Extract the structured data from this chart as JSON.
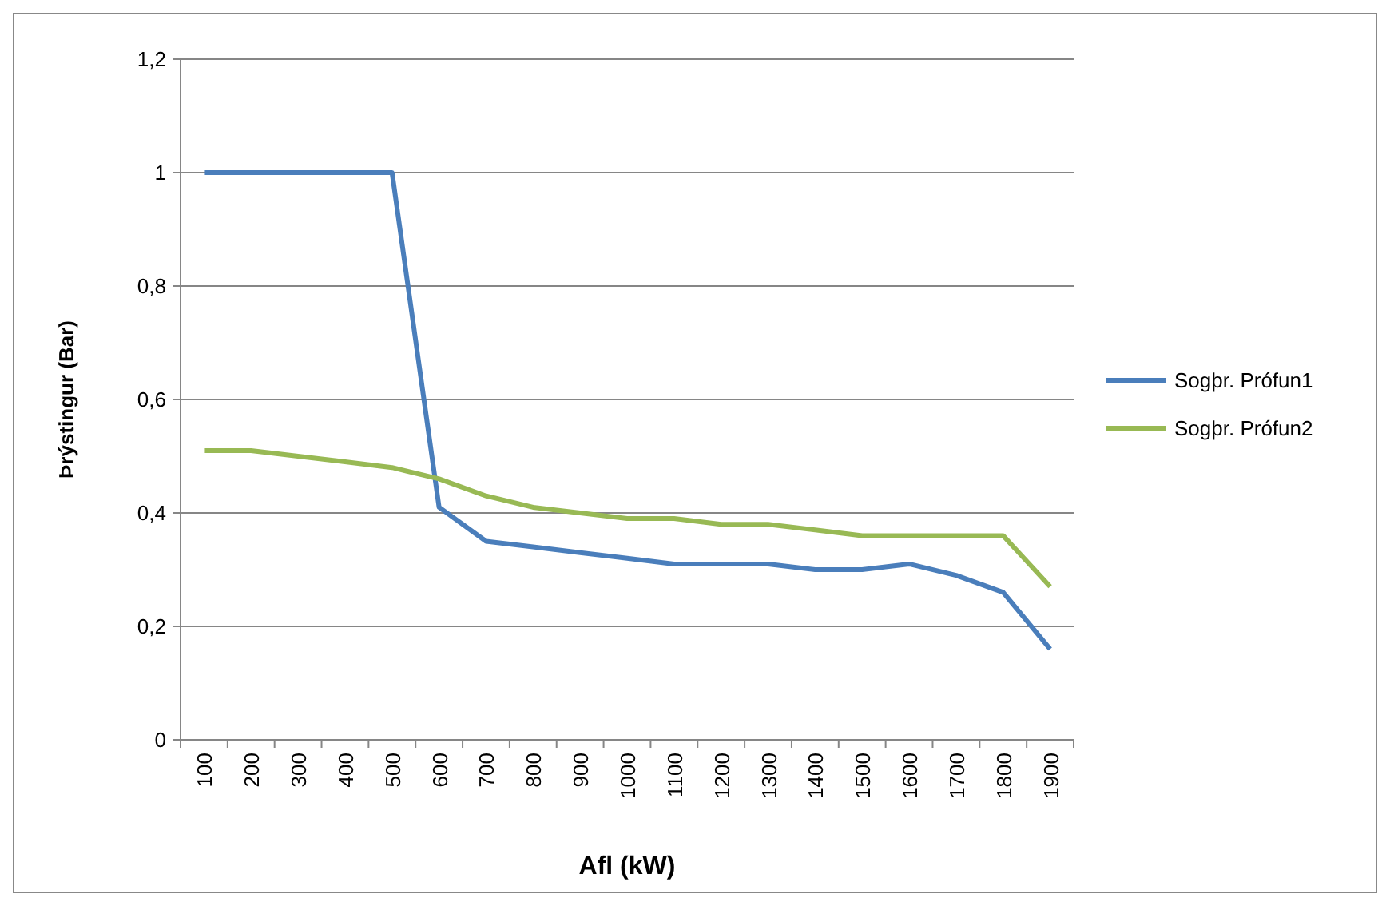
{
  "chart_data": {
    "type": "line",
    "xlabel": "Afl (kW)",
    "ylabel": "Þrýstingur (Bar)",
    "categories": [
      "100",
      "200",
      "300",
      "400",
      "500",
      "600",
      "700",
      "800",
      "900",
      "1000",
      "1100",
      "1200",
      "1300",
      "1400",
      "1500",
      "1600",
      "1700",
      "1800",
      "1900"
    ],
    "series": [
      {
        "name": "Sogþr. Prófun1",
        "color": "#4a7ebb",
        "values": [
          1,
          1,
          1,
          1,
          1,
          0.41,
          0.35,
          0.34,
          0.33,
          0.32,
          0.31,
          0.31,
          0.31,
          0.3,
          0.3,
          0.31,
          0.29,
          0.26,
          0.16
        ]
      },
      {
        "name": "Sogþr. Prófun2",
        "color": "#98b954",
        "values": [
          0.51,
          0.51,
          0.5,
          0.49,
          0.48,
          0.46,
          0.43,
          0.41,
          0.4,
          0.39,
          0.39,
          0.38,
          0.38,
          0.37,
          0.36,
          0.36,
          0.36,
          0.36,
          0.27
        ]
      }
    ],
    "ylim": [
      0,
      1.2
    ],
    "yticks": [
      0,
      {
        "value": 0.2,
        "label": "0,2"
      },
      {
        "value": 0.4,
        "label": "0,4"
      },
      {
        "value": 0.6,
        "label": "0,6"
      },
      {
        "value": 0.8,
        "label": "0,8"
      },
      1,
      {
        "value": 1.2,
        "label": "1,2"
      }
    ],
    "grid": "y",
    "legend": "right",
    "marker": "none",
    "line_style": "solid"
  }
}
